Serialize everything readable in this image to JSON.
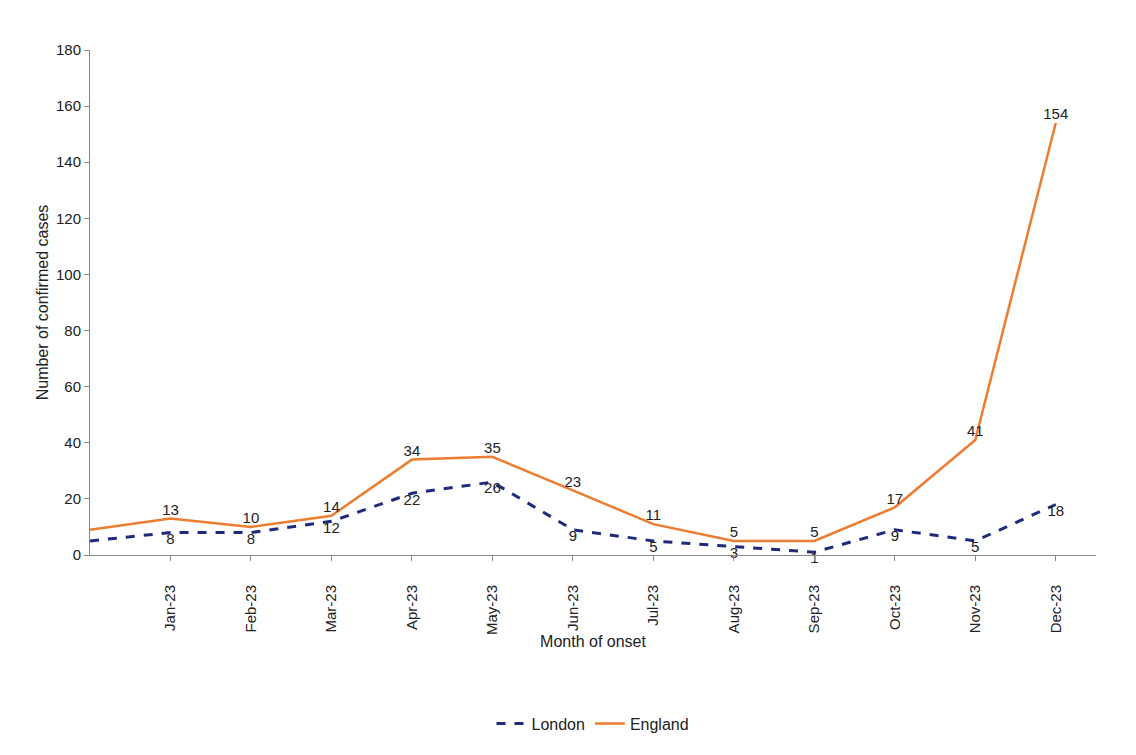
{
  "chart_data": {
    "type": "line",
    "x_label": "Month of onset",
    "y_label": "Number of confirmed cases",
    "categories": [
      null,
      "Jan-23",
      "Feb-23",
      "Mar-23",
      "Apr-23",
      "May-23",
      "Jun-23",
      "Jul-23",
      "Aug-23",
      "Sep-23",
      "Oct-23",
      "Nov-23",
      "Dec-23"
    ],
    "series": [
      {
        "name": "London",
        "color": "#1f2a7a",
        "line_style": "dashed",
        "values": [
          5,
          8,
          8,
          12,
          22,
          26,
          9,
          5,
          3,
          1,
          9,
          5,
          18
        ],
        "value_labels": [
          null,
          "8",
          "8",
          "12",
          "22",
          "26",
          "9",
          "5",
          "3",
          "1",
          "9",
          "5",
          "18"
        ]
      },
      {
        "name": "England",
        "color": "#ed7d31",
        "line_style": "solid",
        "values": [
          9,
          13,
          10,
          14,
          34,
          35,
          23,
          11,
          5,
          5,
          17,
          41,
          154
        ],
        "value_labels": [
          null,
          "13",
          "10",
          "14",
          "34",
          "35",
          "23",
          "11",
          "5",
          "5",
          "17",
          "41",
          "154"
        ]
      }
    ],
    "ylim": [
      0,
      180
    ],
    "yticks": [
      0,
      20,
      40,
      60,
      80,
      100,
      120,
      140,
      160,
      180
    ],
    "grid": false,
    "data_labels": true,
    "legend": "bottom"
  }
}
